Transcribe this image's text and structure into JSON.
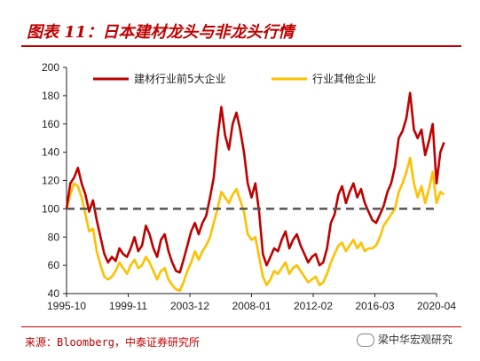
{
  "figure_title": "图表 11：日本建材龙头与非龙头行情",
  "source": "来源：Bloomberg，中泰证券研究所",
  "watermark": "梁中华宏观研究",
  "colors": {
    "series1": "#c00000",
    "series2": "#ffc000",
    "baseline": "#555555",
    "accent": "#c00000"
  },
  "chart_data": {
    "type": "line",
    "title": "",
    "xlabel": "",
    "ylabel": "",
    "ylim": [
      40,
      200
    ],
    "yticks": [
      40,
      60,
      80,
      100,
      120,
      140,
      160,
      180,
      200
    ],
    "xtick_labels": [
      "1995-10",
      "1999-11",
      "2003-12",
      "2008-01",
      "2012-02",
      "2016-03",
      "2020-04"
    ],
    "x_range": [
      "1995-10",
      "2020-04"
    ],
    "reference_line": {
      "y": 100,
      "style": "dashed"
    },
    "grid": false,
    "legend_position": "top",
    "series": [
      {
        "name": "建材行业前5大企业",
        "color": "#c00000",
        "points": [
          [
            "1995-10",
            100
          ],
          [
            "1996-01",
            118
          ],
          [
            "1996-04",
            122
          ],
          [
            "1996-07",
            129
          ],
          [
            "1996-10",
            118
          ],
          [
            "1997-01",
            110
          ],
          [
            "1997-04",
            98
          ],
          [
            "1997-07",
            106
          ],
          [
            "1997-10",
            92
          ],
          [
            "1998-01",
            80
          ],
          [
            "1998-04",
            68
          ],
          [
            "1998-07",
            62
          ],
          [
            "1998-10",
            66
          ],
          [
            "1999-01",
            63
          ],
          [
            "1999-04",
            72
          ],
          [
            "1999-07",
            68
          ],
          [
            "1999-10",
            66
          ],
          [
            "2000-01",
            72
          ],
          [
            "2000-04",
            80
          ],
          [
            "2000-07",
            70
          ],
          [
            "2000-10",
            74
          ],
          [
            "2001-01",
            88
          ],
          [
            "2001-04",
            82
          ],
          [
            "2001-07",
            72
          ],
          [
            "2001-10",
            66
          ],
          [
            "2002-01",
            78
          ],
          [
            "2002-04",
            82
          ],
          [
            "2002-07",
            70
          ],
          [
            "2002-10",
            62
          ],
          [
            "2003-01",
            56
          ],
          [
            "2003-04",
            55
          ],
          [
            "2003-07",
            64
          ],
          [
            "2003-10",
            74
          ],
          [
            "2004-01",
            84
          ],
          [
            "2004-04",
            90
          ],
          [
            "2004-07",
            82
          ],
          [
            "2004-10",
            90
          ],
          [
            "2005-01",
            95
          ],
          [
            "2005-04",
            108
          ],
          [
            "2005-07",
            122
          ],
          [
            "2005-10",
            150
          ],
          [
            "2006-01",
            172
          ],
          [
            "2006-04",
            152
          ],
          [
            "2006-07",
            142
          ],
          [
            "2006-10",
            160
          ],
          [
            "2007-01",
            168
          ],
          [
            "2007-04",
            156
          ],
          [
            "2007-07",
            140
          ],
          [
            "2007-10",
            118
          ],
          [
            "2008-01",
            108
          ],
          [
            "2008-04",
            118
          ],
          [
            "2008-07",
            98
          ],
          [
            "2008-10",
            68
          ],
          [
            "2009-01",
            60
          ],
          [
            "2009-04",
            66
          ],
          [
            "2009-07",
            72
          ],
          [
            "2009-10",
            70
          ],
          [
            "2010-01",
            78
          ],
          [
            "2010-04",
            84
          ],
          [
            "2010-07",
            72
          ],
          [
            "2010-10",
            78
          ],
          [
            "2011-01",
            82
          ],
          [
            "2011-04",
            74
          ],
          [
            "2011-07",
            68
          ],
          [
            "2011-10",
            62
          ],
          [
            "2012-01",
            66
          ],
          [
            "2012-04",
            68
          ],
          [
            "2012-07",
            60
          ],
          [
            "2012-10",
            62
          ],
          [
            "2013-01",
            72
          ],
          [
            "2013-04",
            90
          ],
          [
            "2013-07",
            96
          ],
          [
            "2013-10",
            110
          ],
          [
            "2014-01",
            116
          ],
          [
            "2014-04",
            104
          ],
          [
            "2014-07",
            112
          ],
          [
            "2014-10",
            118
          ],
          [
            "2015-01",
            108
          ],
          [
            "2015-04",
            114
          ],
          [
            "2015-07",
            104
          ],
          [
            "2015-10",
            98
          ],
          [
            "2016-01",
            92
          ],
          [
            "2016-04",
            90
          ],
          [
            "2016-07",
            96
          ],
          [
            "2016-10",
            102
          ],
          [
            "2017-01",
            112
          ],
          [
            "2017-04",
            118
          ],
          [
            "2017-07",
            130
          ],
          [
            "2017-10",
            150
          ],
          [
            "2018-01",
            155
          ],
          [
            "2018-04",
            164
          ],
          [
            "2018-07",
            182
          ],
          [
            "2018-10",
            156
          ],
          [
            "2019-01",
            150
          ],
          [
            "2019-04",
            156
          ],
          [
            "2019-07",
            138
          ],
          [
            "2019-10",
            148
          ],
          [
            "2020-01",
            160
          ],
          [
            "2020-04",
            118
          ],
          [
            "2020-07",
            140
          ],
          [
            "2020-10",
            147
          ]
        ]
      },
      {
        "name": "行业其他企业",
        "color": "#ffc000",
        "points": [
          [
            "1995-10",
            100
          ],
          [
            "1996-01",
            110
          ],
          [
            "1996-04",
            118
          ],
          [
            "1996-07",
            116
          ],
          [
            "1996-10",
            108
          ],
          [
            "1997-01",
            96
          ],
          [
            "1997-04",
            84
          ],
          [
            "1997-07",
            86
          ],
          [
            "1997-10",
            70
          ],
          [
            "1998-01",
            60
          ],
          [
            "1998-04",
            52
          ],
          [
            "1998-07",
            50
          ],
          [
            "1998-10",
            52
          ],
          [
            "1999-01",
            56
          ],
          [
            "1999-04",
            62
          ],
          [
            "1999-07",
            58
          ],
          [
            "1999-10",
            54
          ],
          [
            "2000-01",
            60
          ],
          [
            "2000-04",
            64
          ],
          [
            "2000-07",
            58
          ],
          [
            "2000-10",
            60
          ],
          [
            "2001-01",
            66
          ],
          [
            "2001-04",
            62
          ],
          [
            "2001-07",
            56
          ],
          [
            "2001-10",
            50
          ],
          [
            "2002-01",
            56
          ],
          [
            "2002-04",
            58
          ],
          [
            "2002-07",
            50
          ],
          [
            "2002-10",
            46
          ],
          [
            "2003-01",
            43
          ],
          [
            "2003-04",
            42
          ],
          [
            "2003-07",
            48
          ],
          [
            "2003-10",
            56
          ],
          [
            "2004-01",
            62
          ],
          [
            "2004-04",
            70
          ],
          [
            "2004-07",
            64
          ],
          [
            "2004-10",
            70
          ],
          [
            "2005-01",
            74
          ],
          [
            "2005-04",
            80
          ],
          [
            "2005-07",
            90
          ],
          [
            "2005-10",
            100
          ],
          [
            "2006-01",
            112
          ],
          [
            "2006-04",
            108
          ],
          [
            "2006-07",
            104
          ],
          [
            "2006-10",
            110
          ],
          [
            "2007-01",
            114
          ],
          [
            "2007-04",
            106
          ],
          [
            "2007-07",
            98
          ],
          [
            "2007-10",
            82
          ],
          [
            "2008-01",
            78
          ],
          [
            "2008-04",
            80
          ],
          [
            "2008-07",
            66
          ],
          [
            "2008-10",
            52
          ],
          [
            "2009-01",
            46
          ],
          [
            "2009-04",
            50
          ],
          [
            "2009-07",
            56
          ],
          [
            "2009-10",
            54
          ],
          [
            "2010-01",
            58
          ],
          [
            "2010-04",
            62
          ],
          [
            "2010-07",
            54
          ],
          [
            "2010-10",
            58
          ],
          [
            "2011-01",
            60
          ],
          [
            "2011-04",
            56
          ],
          [
            "2011-07",
            52
          ],
          [
            "2011-10",
            48
          ],
          [
            "2012-01",
            50
          ],
          [
            "2012-04",
            52
          ],
          [
            "2012-07",
            46
          ],
          [
            "2012-10",
            48
          ],
          [
            "2013-01",
            54
          ],
          [
            "2013-04",
            62
          ],
          [
            "2013-07",
            68
          ],
          [
            "2013-10",
            74
          ],
          [
            "2014-01",
            76
          ],
          [
            "2014-04",
            70
          ],
          [
            "2014-07",
            74
          ],
          [
            "2014-10",
            78
          ],
          [
            "2015-01",
            72
          ],
          [
            "2015-04",
            76
          ],
          [
            "2015-07",
            70
          ],
          [
            "2015-10",
            72
          ],
          [
            "2016-01",
            72
          ],
          [
            "2016-04",
            74
          ],
          [
            "2016-07",
            80
          ],
          [
            "2016-10",
            88
          ],
          [
            "2017-01",
            92
          ],
          [
            "2017-04",
            96
          ],
          [
            "2017-07",
            100
          ],
          [
            "2017-10",
            112
          ],
          [
            "2018-01",
            118
          ],
          [
            "2018-04",
            126
          ],
          [
            "2018-07",
            136
          ],
          [
            "2018-10",
            118
          ],
          [
            "2019-01",
            108
          ],
          [
            "2019-04",
            116
          ],
          [
            "2019-07",
            104
          ],
          [
            "2019-10",
            114
          ],
          [
            "2020-01",
            126
          ],
          [
            "2020-04",
            104
          ],
          [
            "2020-07",
            112
          ],
          [
            "2020-10",
            110
          ]
        ]
      }
    ]
  }
}
